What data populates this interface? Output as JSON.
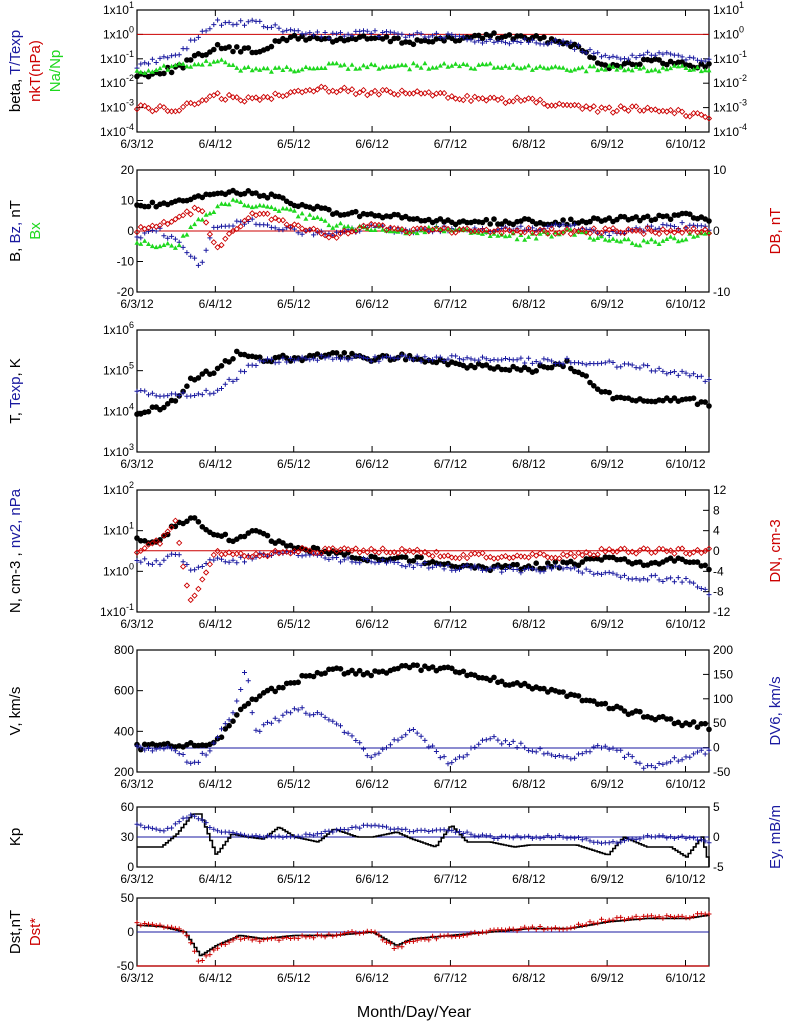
{
  "x_tick_labels": [
    "6/3/12",
    "6/4/12",
    "6/5/12",
    "6/6/12",
    "6/7/12",
    "6/8/12",
    "6/9/12",
    "6/10/12"
  ],
  "x_title": "Month/Day/Year",
  "colors": {
    "black": "#000000",
    "blue": "#1a1aa0",
    "red": "#cc0000",
    "green": "#1ed81e"
  },
  "panels": [
    {
      "id": "beta",
      "left_label": [
        {
          "t": "beta, ",
          "c": "black"
        },
        {
          "t": "T/Texp",
          "c": "blue"
        }
      ],
      "left_label2": [
        {
          "t": "nkT(nPa)",
          "c": "red"
        }
      ],
      "left_label3": [
        {
          "t": "Na/Np",
          "c": "green"
        }
      ],
      "right_label": [],
      "left_ticks": [
        "1x10-4",
        "1x10-3",
        "1x10-2",
        "1x10-1",
        "1x100",
        "1x101"
      ],
      "right_ticks": [
        "1x10-4",
        "1x10-3",
        "1x10-2",
        "1x10-1",
        "1x100",
        "1x101"
      ]
    },
    {
      "id": "bfield",
      "left_label": [
        {
          "t": "B, ",
          "c": "black"
        },
        {
          "t": "Bz, ",
          "c": "blue"
        },
        {
          "t": "nT",
          "c": "black"
        }
      ],
      "left_label2": [
        {
          "t": "Bx",
          "c": "green"
        }
      ],
      "right_label": [
        {
          "t": "DB, nT",
          "c": "red"
        }
      ],
      "left_ticks": [
        "-20",
        "-10",
        "0",
        "10",
        "20"
      ],
      "right_ticks": [
        "-10",
        "0",
        "10"
      ]
    },
    {
      "id": "temp",
      "left_label": [
        {
          "t": "T, ",
          "c": "black"
        },
        {
          "t": "Texp",
          "c": "blue"
        },
        {
          "t": ", K",
          "c": "black"
        }
      ],
      "right_label": [],
      "left_ticks": [
        "1x103",
        "1x104",
        "1x105",
        "1x106"
      ],
      "right_ticks": []
    },
    {
      "id": "density",
      "left_label": [
        {
          "t": "N, cm-3 , ",
          "c": "black"
        },
        {
          "t": "nv2, nPa",
          "c": "blue"
        }
      ],
      "right_label": [
        {
          "t": "DN, cm-3",
          "c": "red"
        }
      ],
      "left_ticks": [
        "1x10-1",
        "1x100",
        "1x101",
        "1x102"
      ],
      "right_ticks": [
        "-12",
        "-8",
        "-4",
        "0",
        "4",
        "8",
        "12"
      ]
    },
    {
      "id": "speed",
      "left_label": [
        {
          "t": "V, km/s",
          "c": "black"
        }
      ],
      "right_label": [
        {
          "t": "DV6, km/s",
          "c": "blue"
        }
      ],
      "left_ticks": [
        "200",
        "400",
        "600",
        "800"
      ],
      "right_ticks": [
        "-50",
        "0",
        "50",
        "100",
        "150",
        "200"
      ]
    },
    {
      "id": "kp",
      "left_label": [
        {
          "t": "Kp",
          "c": "black"
        }
      ],
      "right_label": [
        {
          "t": "Ey,  mB/m",
          "c": "blue"
        }
      ],
      "left_ticks": [
        "0",
        "30",
        "60"
      ],
      "right_ticks": [
        "-5",
        "0",
        "5"
      ]
    },
    {
      "id": "dst",
      "left_label": [
        {
          "t": "Dst,nT",
          "c": "black"
        }
      ],
      "left_label2": [
        {
          "t": "Dst*",
          "c": "red"
        }
      ],
      "right_label": [],
      "left_ticks": [
        "-50",
        "0",
        "50"
      ],
      "right_ticks": []
    }
  ],
  "chart_data": [
    {
      "type": "scatter",
      "panel": "beta",
      "ylog": true,
      "ylim": [
        0.0001,
        10
      ],
      "series": [
        {
          "color": "black",
          "marker": "dot",
          "x": [
            0.0,
            0.5,
            1.0,
            1.5,
            2.0,
            2.5,
            3.0,
            3.5,
            4.0,
            4.5,
            5.0,
            5.5,
            6.0,
            6.5,
            7.0,
            7.3
          ],
          "y": [
            0.02,
            0.04,
            0.3,
            0.2,
            0.8,
            0.6,
            0.7,
            0.5,
            0.6,
            0.9,
            0.7,
            0.5,
            0.05,
            0.08,
            0.06,
            0.05
          ]
        },
        {
          "color": "blue",
          "marker": "plus",
          "x": [
            0.0,
            0.5,
            1.0,
            1.5,
            2.0,
            2.5,
            3.0,
            3.5,
            4.0,
            4.5,
            5.0,
            5.5,
            6.0,
            6.5,
            7.0,
            7.3
          ],
          "y": [
            0.05,
            0.15,
            3,
            3,
            1.2,
            0.9,
            1.1,
            1.0,
            0.8,
            0.5,
            0.6,
            0.4,
            0.1,
            0.15,
            0.12,
            0.1
          ]
        },
        {
          "color": "red",
          "marker": "diamond",
          "x": [
            0.0,
            0.5,
            1.0,
            1.5,
            2.0,
            2.5,
            3.0,
            3.5,
            4.0,
            4.5,
            5.0,
            5.5,
            6.0,
            6.5,
            7.0,
            7.3
          ],
          "y": [
            0.001,
            0.0008,
            0.003,
            0.002,
            0.005,
            0.006,
            0.004,
            0.004,
            0.003,
            0.002,
            0.002,
            0.001,
            0.0008,
            0.001,
            0.0006,
            0.0004
          ]
        },
        {
          "color": "green",
          "marker": "triangle",
          "x": [
            0.0,
            0.5,
            1.0,
            1.5,
            2.0,
            2.5,
            3.0,
            3.5,
            4.0,
            4.5,
            5.0,
            5.5,
            6.0,
            6.5,
            7.0,
            7.3
          ],
          "y": [
            0.03,
            0.05,
            0.08,
            0.03,
            0.04,
            0.05,
            0.05,
            0.05,
            0.05,
            0.05,
            0.04,
            0.04,
            0.04,
            0.04,
            0.04,
            0.04
          ]
        }
      ]
    },
    {
      "type": "scatter",
      "panel": "bfield",
      "ylim": [
        -20,
        20
      ],
      "y2lim": [
        -10,
        10
      ],
      "series": [
        {
          "color": "black",
          "marker": "dot",
          "x": [
            0.0,
            0.5,
            1.0,
            1.3,
            1.6,
            2.0,
            2.5,
            3.0,
            3.5,
            4.0,
            4.5,
            5.0,
            5.5,
            6.0,
            6.5,
            7.0,
            7.3
          ],
          "y": [
            8,
            9,
            12,
            13,
            12,
            9,
            6,
            5,
            4,
            3,
            3,
            3,
            3,
            4,
            4,
            5,
            4
          ]
        },
        {
          "color": "blue",
          "marker": "plus",
          "x": [
            0.0,
            0.3,
            0.6,
            0.8,
            1.0,
            1.5,
            2.0,
            2.5,
            3.0,
            3.5,
            4.0,
            4.5,
            5.0,
            5.5,
            6.0,
            6.5,
            7.0,
            7.3
          ],
          "y": [
            -2,
            0,
            -5,
            -12,
            2,
            3,
            0,
            -1,
            1,
            0,
            1,
            0,
            1,
            2,
            -1,
            1,
            2,
            1
          ]
        },
        {
          "color": "green",
          "marker": "triangle",
          "x": [
            0.0,
            0.5,
            0.8,
            1.2,
            1.5,
            2.0,
            2.5,
            3.0,
            3.5,
            4.0,
            4.5,
            5.0,
            5.5,
            6.0,
            6.5,
            7.0,
            7.3
          ],
          "y": [
            -4,
            -5,
            4,
            10,
            8,
            6,
            2,
            1,
            0,
            1,
            -1,
            -2,
            0,
            -3,
            -4,
            -2,
            -1
          ]
        },
        {
          "color": "red",
          "marker": "diamond",
          "axis": "right",
          "x": [
            0.0,
            0.5,
            0.8,
            1.0,
            1.5,
            2.0,
            2.5,
            3.0,
            3.5,
            4.0,
            4.5,
            5.0,
            5.5,
            6.0,
            6.5,
            7.0,
            7.3
          ],
          "y": [
            0,
            2,
            4,
            -3,
            3,
            1,
            -1,
            1,
            0,
            0,
            0,
            0,
            0,
            0,
            0,
            0,
            0
          ]
        }
      ]
    },
    {
      "type": "scatter",
      "panel": "temp",
      "ylog": true,
      "ylim": [
        1000,
        1000000
      ],
      "series": [
        {
          "color": "black",
          "marker": "dot",
          "x": [
            0.0,
            0.3,
            0.5,
            0.7,
            1.0,
            1.3,
            1.5,
            2.0,
            2.5,
            3.0,
            3.5,
            4.0,
            4.5,
            5.0,
            5.5,
            6.0,
            6.5,
            7.0,
            7.3
          ],
          "y": [
            10000,
            12000,
            20000,
            60000,
            100000,
            300000,
            200000,
            200000,
            250000,
            200000,
            220000,
            150000,
            120000,
            100000,
            150000,
            25000,
            20000,
            20000,
            15000
          ]
        },
        {
          "color": "blue",
          "marker": "plus",
          "x": [
            0.0,
            0.5,
            1.0,
            1.5,
            2.0,
            2.5,
            3.0,
            3.5,
            4.0,
            4.5,
            5.0,
            5.5,
            6.0,
            6.5,
            7.0,
            7.3
          ],
          "y": [
            28000,
            25000,
            30000,
            150000,
            200000,
            200000,
            200000,
            200000,
            200000,
            190000,
            180000,
            170000,
            150000,
            120000,
            80000,
            60000
          ]
        }
      ]
    },
    {
      "type": "scatter",
      "panel": "density",
      "ylog": true,
      "ylim": [
        0.1,
        100
      ],
      "y2lim": [
        -12,
        12
      ],
      "series": [
        {
          "color": "black",
          "marker": "dot",
          "x": [
            0.0,
            0.3,
            0.5,
            0.7,
            1.0,
            1.3,
            1.5,
            2.0,
            2.5,
            3.0,
            3.5,
            4.0,
            4.5,
            5.0,
            5.5,
            6.0,
            6.5,
            7.0,
            7.3
          ],
          "y": [
            7,
            5,
            15,
            20,
            8,
            6,
            9,
            4,
            3,
            2,
            2,
            1.5,
            1.2,
            1.3,
            1.5,
            2,
            1.5,
            2,
            1.2
          ]
        },
        {
          "color": "blue",
          "marker": "plus",
          "x": [
            0.0,
            0.3,
            0.5,
            0.7,
            1.0,
            1.3,
            1.5,
            2.0,
            2.5,
            3.0,
            3.5,
            4.0,
            4.5,
            5.0,
            5.5,
            6.0,
            6.5,
            7.0,
            7.3
          ],
          "y": [
            2,
            1.5,
            3,
            1,
            2,
            1.8,
            2.5,
            3,
            2,
            1.8,
            1.5,
            1.2,
            1.2,
            1.0,
            1.2,
            0.8,
            0.7,
            0.6,
            0.3
          ]
        },
        {
          "color": "red",
          "marker": "diamond",
          "axis": "right",
          "x": [
            0.0,
            0.3,
            0.5,
            0.6,
            0.7,
            1.0,
            1.5,
            2.0,
            2.5,
            3.0,
            3.5,
            4.0,
            4.5,
            5.0,
            5.5,
            6.0,
            6.5,
            7.0,
            7.3
          ],
          "y": [
            0,
            2,
            6,
            -4,
            -10,
            0,
            -1,
            0,
            0,
            0,
            0,
            -1,
            -1,
            -1,
            -1,
            0,
            0,
            0,
            0
          ]
        }
      ]
    },
    {
      "type": "scatter",
      "panel": "speed",
      "ylim": [
        200,
        800
      ],
      "y2lim": [
        -50,
        200
      ],
      "series": [
        {
          "color": "black",
          "marker": "dot",
          "x": [
            0.0,
            0.5,
            1.0,
            1.3,
            1.5,
            2.0,
            2.5,
            3.0,
            3.5,
            4.0,
            4.5,
            5.0,
            5.5,
            6.0,
            6.5,
            7.0,
            7.3
          ],
          "y": [
            320,
            330,
            340,
            500,
            560,
            650,
            700,
            680,
            720,
            700,
            660,
            620,
            580,
            520,
            480,
            440,
            420
          ]
        },
        {
          "color": "blue",
          "marker": "plus",
          "axis": "right",
          "x": [
            0.0,
            0.5,
            0.7,
            1.0,
            1.3,
            1.4,
            1.5,
            2.0,
            2.5,
            3.0,
            3.5,
            4.0,
            4.5,
            5.0,
            5.5,
            6.0,
            6.5,
            7.0,
            7.3
          ],
          "y": [
            0,
            -5,
            -40,
            10,
            100,
            170,
            30,
            80,
            60,
            -20,
            40,
            -35,
            20,
            0,
            -20,
            5,
            -40,
            -20,
            -5
          ]
        }
      ]
    },
    {
      "type": "line",
      "panel": "kp",
      "ylim": [
        0,
        60
      ],
      "y2lim": [
        -5,
        5
      ],
      "series": [
        {
          "color": "black",
          "marker": "line",
          "x": [
            0.0,
            0.3,
            0.5,
            0.7,
            0.8,
            1.0,
            1.2,
            1.4,
            1.6,
            1.8,
            2.0,
            2.3,
            2.5,
            2.8,
            3.0,
            3.3,
            3.5,
            3.8,
            4.0,
            4.2,
            4.5,
            4.8,
            5.0,
            5.3,
            5.6,
            6.0,
            6.2,
            6.5,
            6.8,
            7.0,
            7.2,
            7.3
          ],
          "y": [
            20,
            20,
            33,
            53,
            53,
            12,
            33,
            30,
            28,
            40,
            30,
            25,
            38,
            30,
            30,
            35,
            28,
            20,
            42,
            25,
            25,
            20,
            22,
            22,
            22,
            12,
            30,
            20,
            20,
            10,
            30,
            0
          ]
        },
        {
          "color": "blue",
          "marker": "plus",
          "axis": "right",
          "x": [
            0.0,
            0.3,
            0.5,
            0.7,
            0.8,
            1.0,
            1.5,
            2.0,
            2.5,
            3.0,
            3.5,
            4.0,
            4.5,
            5.0,
            5.5,
            6.0,
            6.5,
            7.0,
            7.3
          ],
          "y": [
            2,
            1,
            2,
            4,
            3,
            1,
            0,
            0,
            1,
            2,
            1,
            1,
            0,
            0,
            0,
            -1,
            0,
            0,
            -1
          ]
        }
      ]
    },
    {
      "type": "line",
      "panel": "dst",
      "ylim": [
        -50,
        50
      ],
      "series": [
        {
          "color": "black",
          "marker": "line",
          "x": [
            0.0,
            0.3,
            0.6,
            0.8,
            1.0,
            1.3,
            1.6,
            2.0,
            2.5,
            3.0,
            3.3,
            3.5,
            4.0,
            4.5,
            5.0,
            5.5,
            6.0,
            6.5,
            7.0,
            7.3
          ],
          "y": [
            10,
            8,
            0,
            -35,
            -20,
            -5,
            -10,
            -5,
            -5,
            0,
            -20,
            -10,
            -5,
            0,
            5,
            5,
            15,
            20,
            20,
            25
          ]
        },
        {
          "color": "red",
          "marker": "plus",
          "x": [
            0.0,
            0.3,
            0.6,
            0.8,
            1.0,
            1.3,
            1.6,
            2.0,
            2.5,
            3.0,
            3.3,
            3.5,
            4.0,
            4.5,
            5.0,
            5.5,
            6.0,
            6.5,
            7.0,
            7.3
          ],
          "y": [
            12,
            10,
            2,
            -45,
            -25,
            -8,
            -12,
            -8,
            -5,
            2,
            -25,
            -12,
            -6,
            0,
            6,
            6,
            18,
            22,
            22,
            28
          ]
        }
      ]
    }
  ]
}
